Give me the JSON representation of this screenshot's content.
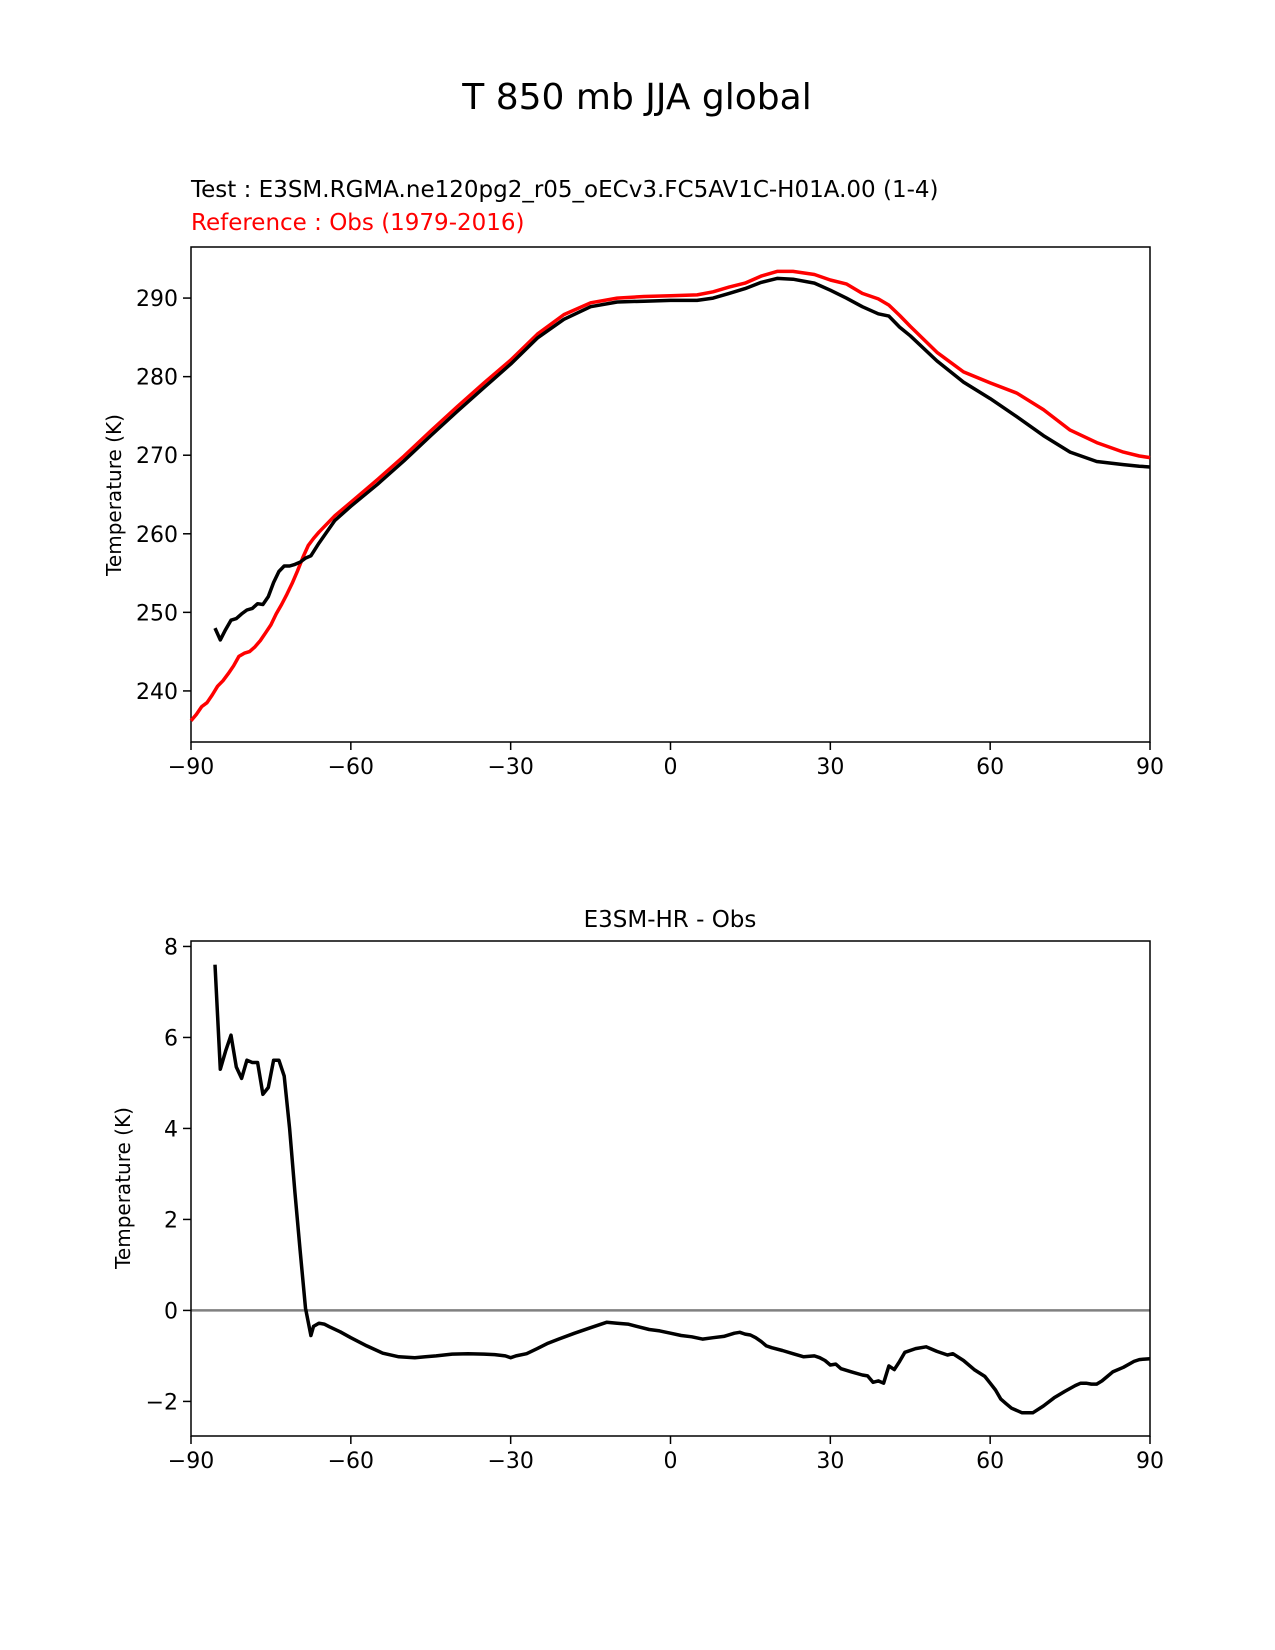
{
  "figure": {
    "title": "T 850 mb JJA global",
    "test_label": "Test : E3SM.RGMA.ne120pg2_r05_oECv3.FC5AV1C-H01A.00 (1-4)",
    "reference_label": "Reference : Obs (1979-2016)"
  },
  "colors": {
    "test": "#000000",
    "reference": "#ff0000",
    "zero_line": "#808080"
  },
  "chart_data": [
    {
      "type": "line",
      "title": "",
      "xlabel": "",
      "ylabel": "Temperature (K)",
      "xlim": [
        -90,
        90
      ],
      "ylim": [
        233.5,
        296.5
      ],
      "xticks": [
        -90,
        -60,
        -30,
        0,
        30,
        60,
        90
      ],
      "xtick_labels": [
        "−90",
        "−60",
        "−30",
        "0",
        "30",
        "60",
        "90"
      ],
      "yticks": [
        240,
        250,
        260,
        270,
        280,
        290
      ],
      "ytick_labels": [
        "240",
        "250",
        "260",
        "270",
        "280",
        "290"
      ],
      "grid": false,
      "series": [
        {
          "name": "Test : E3SM.RGMA.ne120pg2_r05_oECv3.FC5AV1C-H01A.00 (1-4)",
          "color": "#000000",
          "x": [
            -85.5,
            -84.5,
            -83.5,
            -82.5,
            -81.5,
            -80.5,
            -79.5,
            -78.5,
            -77.5,
            -76.5,
            -75.5,
            -74.5,
            -73.5,
            -72.5,
            -71.5,
            -70.5,
            -69.5,
            -68.5,
            -67.5,
            -66,
            -63,
            -60,
            -55,
            -50,
            -45,
            -40,
            -35,
            -30,
            -25,
            -20,
            -15,
            -10,
            -5,
            0,
            5,
            8,
            11,
            14,
            17,
            20,
            23,
            27,
            30,
            33,
            36,
            39,
            41,
            43,
            45,
            50,
            55,
            60,
            65,
            70,
            75,
            80,
            85,
            88,
            90
          ],
          "y": [
            248.0,
            246.5,
            247.8,
            249.0,
            249.2,
            249.8,
            250.3,
            250.5,
            251.1,
            251.0,
            252.0,
            253.8,
            255.2,
            255.9,
            255.9,
            256.1,
            256.4,
            256.9,
            257.2,
            258.8,
            261.7,
            263.5,
            266.3,
            269.3,
            272.5,
            275.6,
            278.6,
            281.6,
            284.9,
            287.3,
            288.9,
            289.5,
            289.6,
            289.7,
            289.7,
            290.0,
            290.6,
            291.2,
            292.0,
            292.5,
            292.4,
            291.9,
            291.0,
            290.0,
            288.9,
            288.0,
            287.7,
            286.3,
            285.2,
            282.0,
            279.3,
            277.2,
            274.9,
            272.5,
            270.4,
            269.2,
            268.8,
            268.6,
            268.5
          ]
        },
        {
          "name": "Reference : Obs (1979-2016)",
          "color": "#ff0000",
          "x": [
            -90,
            -89,
            -88,
            -87,
            -86,
            -85,
            -84,
            -83,
            -82,
            -81,
            -80,
            -79,
            -78,
            -77,
            -76,
            -75,
            -74,
            -73,
            -72,
            -71,
            -70,
            -69,
            -68,
            -67,
            -66,
            -63,
            -60,
            -55,
            -50,
            -45,
            -40,
            -35,
            -30,
            -25,
            -20,
            -15,
            -10,
            -5,
            0,
            5,
            8,
            11,
            14,
            17,
            20,
            23,
            27,
            30,
            33,
            36,
            39,
            41,
            43,
            45,
            50,
            55,
            60,
            65,
            70,
            75,
            80,
            85,
            88,
            90
          ],
          "y": [
            236.2,
            237.0,
            238.0,
            238.5,
            239.5,
            240.6,
            241.3,
            242.2,
            243.2,
            244.4,
            244.8,
            245.0,
            245.6,
            246.4,
            247.4,
            248.4,
            249.8,
            251.0,
            252.3,
            253.7,
            255.3,
            257.0,
            258.5,
            259.4,
            260.2,
            262.3,
            264.0,
            266.9,
            269.9,
            273.1,
            276.2,
            279.2,
            282.1,
            285.4,
            287.9,
            289.4,
            290.0,
            290.2,
            290.3,
            290.4,
            290.8,
            291.4,
            291.9,
            292.8,
            293.4,
            293.4,
            293.0,
            292.3,
            291.8,
            290.6,
            289.9,
            289.1,
            287.8,
            286.4,
            283.1,
            280.6,
            279.2,
            277.9,
            275.8,
            273.2,
            271.6,
            270.4,
            269.9,
            269.7
          ]
        }
      ]
    },
    {
      "type": "line",
      "title": "E3SM-HR - Obs",
      "xlabel": "",
      "ylabel": "Temperature (K)",
      "xlim": [
        -90,
        90
      ],
      "ylim": [
        -2.76,
        8.12
      ],
      "xticks": [
        -90,
        -60,
        -30,
        0,
        30,
        60,
        90
      ],
      "xtick_labels": [
        "−90",
        "−60",
        "−30",
        "0",
        "30",
        "60",
        "90"
      ],
      "yticks": [
        -2,
        0,
        2,
        4,
        6,
        8
      ],
      "ytick_labels": [
        "−2",
        "0",
        "2",
        "4",
        "6",
        "8"
      ],
      "grid": false,
      "reference_line_y": 0,
      "series": [
        {
          "name": "E3SM-HR - Obs",
          "color": "#000000",
          "x": [
            -85.5,
            -84.5,
            -83.5,
            -82.5,
            -81.5,
            -80.5,
            -79.5,
            -78.5,
            -77.5,
            -76.5,
            -75.5,
            -74.5,
            -73.5,
            -72.5,
            -71.5,
            -70.5,
            -69.5,
            -68.5,
            -67.5,
            -67,
            -66,
            -65,
            -64,
            -62,
            -60,
            -57,
            -54,
            -51,
            -48,
            -46,
            -44,
            -41,
            -38,
            -35,
            -33,
            -31,
            -30,
            -29,
            -27,
            -25,
            -23,
            -21,
            -18,
            -15,
            -12,
            -10,
            -8,
            -6,
            -4,
            -2,
            0,
            2,
            4,
            6,
            8,
            10,
            12,
            13,
            14,
            15,
            16,
            17,
            18,
            19,
            21,
            23,
            25,
            27,
            28,
            29,
            30,
            31,
            32,
            34,
            36,
            37,
            38,
            39,
            40,
            41,
            42,
            43,
            44,
            46,
            48,
            49,
            50,
            52,
            53,
            55,
            57,
            59,
            60,
            61,
            62,
            63,
            64,
            66,
            67,
            68,
            70,
            72,
            74,
            76,
            77,
            78,
            79,
            80,
            81,
            82,
            83,
            85,
            87,
            88,
            89,
            90
          ],
          "y": [
            7.6,
            5.3,
            5.7,
            6.05,
            5.35,
            5.1,
            5.5,
            5.45,
            5.45,
            4.75,
            4.9,
            5.5,
            5.5,
            5.15,
            4.0,
            2.6,
            1.3,
            0.05,
            -0.55,
            -0.35,
            -0.28,
            -0.3,
            -0.36,
            -0.47,
            -0.6,
            -0.78,
            -0.94,
            -1.02,
            -1.04,
            -1.02,
            -1.0,
            -0.96,
            -0.95,
            -0.96,
            -0.97,
            -1.0,
            -1.04,
            -1.0,
            -0.95,
            -0.84,
            -0.72,
            -0.63,
            -0.5,
            -0.38,
            -0.26,
            -0.28,
            -0.3,
            -0.36,
            -0.42,
            -0.45,
            -0.5,
            -0.55,
            -0.58,
            -0.63,
            -0.6,
            -0.57,
            -0.5,
            -0.48,
            -0.52,
            -0.54,
            -0.6,
            -0.68,
            -0.78,
            -0.82,
            -0.88,
            -0.95,
            -1.02,
            -1.0,
            -1.04,
            -1.1,
            -1.2,
            -1.18,
            -1.28,
            -1.35,
            -1.42,
            -1.44,
            -1.58,
            -1.55,
            -1.6,
            -1.22,
            -1.3,
            -1.12,
            -0.92,
            -0.84,
            -0.8,
            -0.85,
            -0.9,
            -0.98,
            -0.95,
            -1.1,
            -1.3,
            -1.45,
            -1.6,
            -1.75,
            -1.95,
            -2.05,
            -2.15,
            -2.25,
            -2.25,
            -2.25,
            -2.1,
            -1.92,
            -1.78,
            -1.65,
            -1.6,
            -1.6,
            -1.62,
            -1.62,
            -1.55,
            -1.45,
            -1.35,
            -1.25,
            -1.12,
            -1.08,
            -1.07,
            -1.06
          ]
        }
      ]
    }
  ]
}
